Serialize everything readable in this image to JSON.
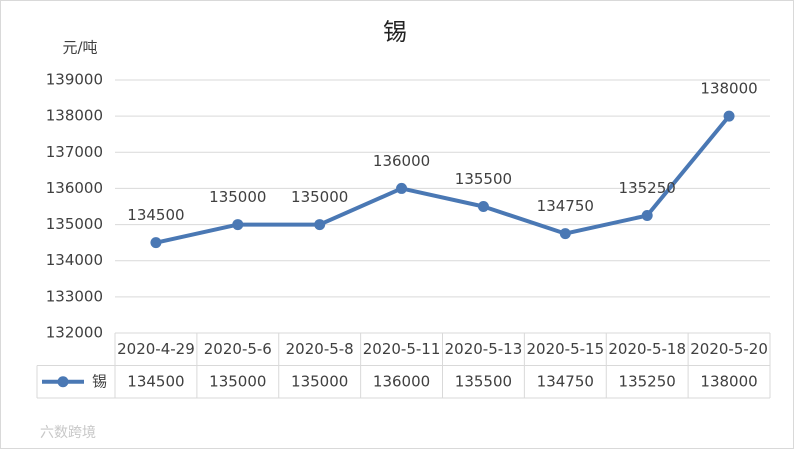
{
  "chart_data": {
    "type": "line",
    "title": "锡",
    "y_unit": "元/吨",
    "categories": [
      "2020-4-29",
      "2020-5-6",
      "2020-5-8",
      "2020-5-11",
      "2020-5-13",
      "2020-5-15",
      "2020-5-18",
      "2020-5-20"
    ],
    "series": [
      {
        "name": "锡",
        "color": "#4a78b4",
        "values": [
          134500,
          135000,
          135000,
          136000,
          135500,
          134750,
          135250,
          138000
        ]
      }
    ],
    "ylim": [
      132000,
      139000
    ],
    "yticks": [
      132000,
      133000,
      134000,
      135000,
      136000,
      137000,
      138000,
      139000
    ],
    "grid": true,
    "data_table": true,
    "watermark": "六数跨境"
  }
}
